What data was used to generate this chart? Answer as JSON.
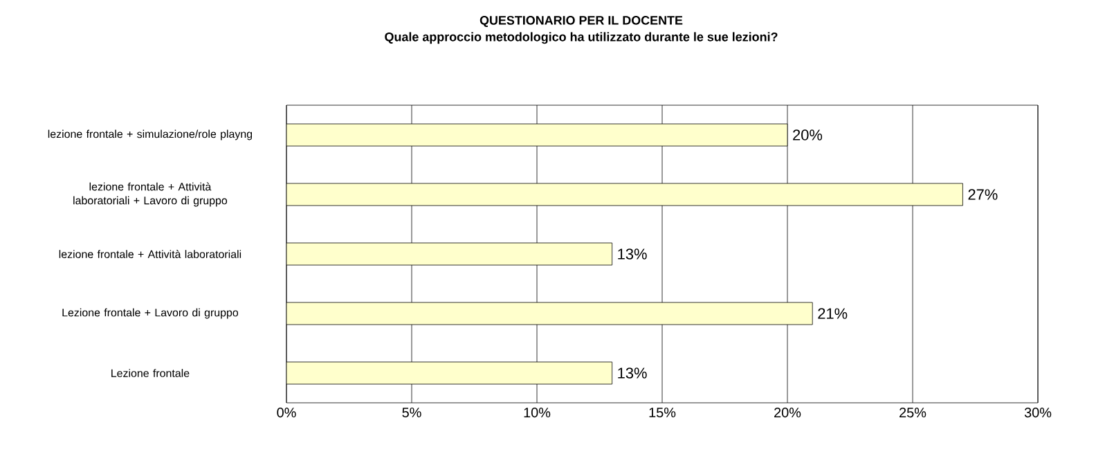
{
  "chart_data": {
    "type": "bar",
    "orientation": "horizontal",
    "title": "QUESTIONARIO PER IL DOCENTE",
    "subtitle": "Quale approccio metodologico ha utilizzato durante le sue lezioni?",
    "categories": [
      "lezione frontale + simulazione/role playng",
      "lezione frontale + Attività laboratoriali + Lavoro di gruppo",
      "lezione frontale + Attività laboratoriali",
      "Lezione frontale + Lavoro di gruppo",
      "Lezione frontale"
    ],
    "values": [
      20,
      27,
      13,
      21,
      13
    ],
    "value_labels": [
      "20%",
      "27%",
      "13%",
      "21%",
      "13%"
    ],
    "color": "#ffffcc",
    "xlim": [
      0,
      30
    ],
    "xticks": [
      {
        "value": 0,
        "label": "0%"
      },
      {
        "value": 5,
        "label": "5%"
      },
      {
        "value": 10,
        "label": "10%"
      },
      {
        "value": 15,
        "label": "15%"
      },
      {
        "value": 20,
        "label": "20%"
      },
      {
        "value": 25,
        "label": "25%"
      },
      {
        "value": 30,
        "label": "30%"
      }
    ],
    "grid": "x"
  }
}
